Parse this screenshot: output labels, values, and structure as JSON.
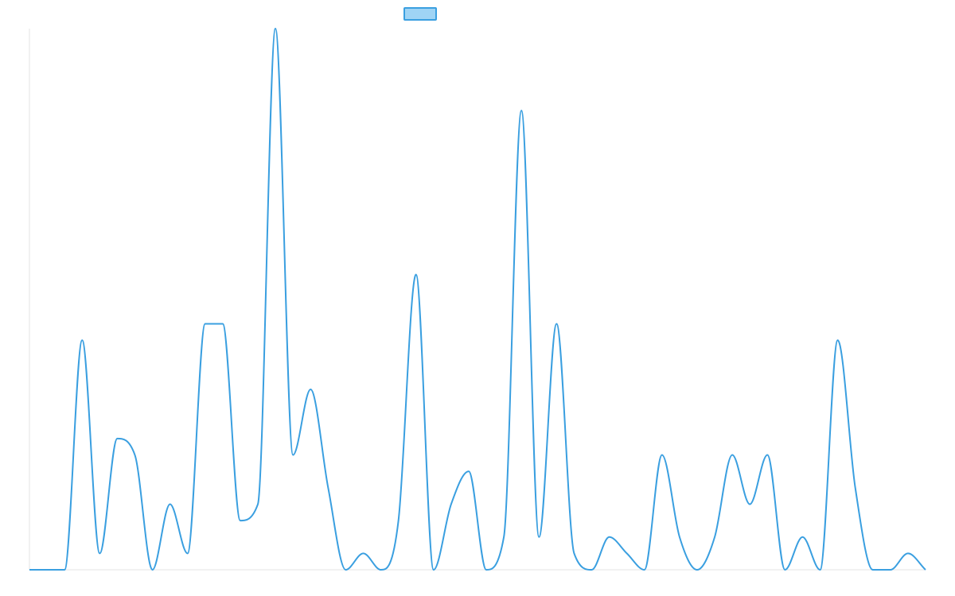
{
  "chart_data": {
    "type": "line",
    "title": "",
    "xlabel": "",
    "ylabel": "",
    "legend": {
      "placement": "top-center",
      "label": ""
    },
    "grid": false,
    "ylim": [
      0,
      33
    ],
    "x": [
      0,
      1,
      2,
      3,
      4,
      5,
      6,
      7,
      8,
      9,
      10,
      11,
      12,
      13,
      14,
      15,
      16,
      17,
      18,
      19,
      20,
      21,
      22,
      23,
      24,
      25,
      26,
      27,
      28,
      29,
      30,
      31,
      32,
      33,
      34,
      35,
      36,
      37,
      38,
      39,
      40,
      41,
      42,
      43,
      44,
      45,
      46,
      47,
      48,
      49,
      50,
      51
    ],
    "series": [
      {
        "values": [
          0,
          0,
          0,
          14,
          1,
          8,
          7,
          0,
          4,
          1,
          15,
          15,
          3,
          4,
          33,
          7,
          11,
          5,
          0,
          1,
          0,
          3,
          18,
          0,
          4,
          6,
          0,
          2,
          28,
          2,
          15,
          1,
          0,
          2,
          1,
          0,
          7,
          2,
          0,
          2,
          7,
          4,
          7,
          0,
          2,
          0,
          14,
          5,
          0,
          0,
          1,
          0
        ],
        "color": "#3a9fe0",
        "fill": "#9fd4f5"
      }
    ]
  }
}
